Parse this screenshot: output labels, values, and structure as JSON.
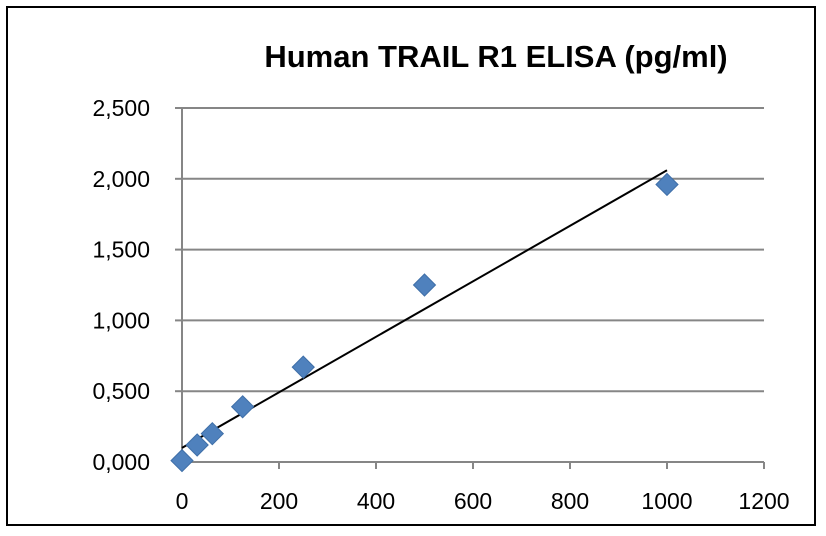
{
  "chart_data": {
    "type": "scatter",
    "title": "Human TRAIL R1 ELISA (pg/ml)",
    "xlabel": "",
    "ylabel": "",
    "xlim": [
      0,
      1200
    ],
    "ylim": [
      0,
      2.5
    ],
    "x_ticks": [
      "0",
      "200",
      "400",
      "600",
      "800",
      "1000",
      "1200"
    ],
    "y_ticks": [
      "0,000",
      "0,500",
      "1,000",
      "1,500",
      "2,000",
      "2,500"
    ],
    "x_tick_values": [
      0,
      200,
      400,
      600,
      800,
      1000,
      1200
    ],
    "y_tick_values": [
      0,
      0.5,
      1,
      1.5,
      2,
      2.5
    ],
    "grid": {
      "horizontal": true,
      "vertical": false
    },
    "legend": "none",
    "series": [
      {
        "marker": "diamond",
        "color": "#4F81BD",
        "points": [
          {
            "x": 0,
            "y": 0.01
          },
          {
            "x": 31.25,
            "y": 0.12
          },
          {
            "x": 62.5,
            "y": 0.2
          },
          {
            "x": 125,
            "y": 0.39
          },
          {
            "x": 250,
            "y": 0.67
          },
          {
            "x": 500,
            "y": 1.25
          },
          {
            "x": 1000,
            "y": 1.96
          }
        ]
      }
    ],
    "trendline": {
      "type": "linear",
      "color": "#000000",
      "start": {
        "x": 0,
        "y": 0.1
      },
      "end": {
        "x": 1000,
        "y": 2.06
      }
    }
  }
}
